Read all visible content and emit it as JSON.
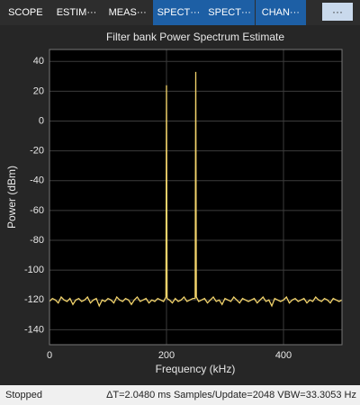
{
  "toolbar": {
    "tabs": [
      {
        "label": "SCOPE",
        "active": false
      },
      {
        "label": "ESTIM···",
        "active": false
      },
      {
        "label": "MEAS···",
        "active": false
      },
      {
        "label": "SPECT···",
        "active": true
      },
      {
        "label": "SPECT···",
        "active": true
      },
      {
        "label": "CHAN···",
        "active": true
      }
    ],
    "more": "···"
  },
  "chart_data": {
    "type": "line",
    "title": "Filter bank Power Spectrum Estimate",
    "x_label": "Frequency (kHz)",
    "y_label": "Power (dBm)",
    "x": [
      0,
      5,
      10,
      15,
      20,
      25,
      30,
      35,
      40,
      45,
      50,
      55,
      60,
      65,
      70,
      75,
      80,
      85,
      90,
      95,
      100,
      105,
      110,
      115,
      120,
      125,
      130,
      135,
      140,
      145,
      150,
      155,
      160,
      165,
      170,
      175,
      180,
      185,
      190,
      195,
      199,
      200,
      201,
      205,
      210,
      215,
      220,
      225,
      230,
      235,
      240,
      245,
      249,
      250,
      251,
      255,
      260,
      265,
      270,
      275,
      280,
      285,
      290,
      295,
      300,
      305,
      310,
      315,
      320,
      325,
      330,
      335,
      340,
      345,
      350,
      355,
      360,
      365,
      370,
      375,
      380,
      385,
      390,
      395,
      400,
      405,
      410,
      415,
      420,
      425,
      430,
      435,
      440,
      445,
      450,
      455,
      460,
      465,
      470,
      475,
      480,
      485,
      490,
      495,
      500
    ],
    "series": [
      {
        "color": "#f2d36b",
        "values": [
          -121,
          -119,
          -120,
          -122,
          -118,
          -120,
          -121,
          -119,
          -123,
          -120,
          -119,
          -121,
          -120,
          -118,
          -122,
          -120,
          -119,
          -124,
          -120,
          -121,
          -119,
          -120,
          -122,
          -118,
          -120,
          -121,
          -119,
          -120,
          -123,
          -120,
          -118,
          -121,
          -120,
          -119,
          -122,
          -120,
          -121,
          -119,
          -120,
          -121,
          -118,
          24,
          -119,
          -120,
          -122,
          -119,
          -121,
          -120,
          -118,
          -121,
          -120,
          -119,
          -119,
          33,
          -118,
          -121,
          -120,
          -119,
          -122,
          -120,
          -118,
          -121,
          -120,
          -123,
          -119,
          -120,
          -121,
          -118,
          -120,
          -122,
          -119,
          -120,
          -121,
          -120,
          -119,
          -122,
          -120,
          -118,
          -121,
          -120,
          -124,
          -119,
          -120,
          -121,
          -120,
          -118,
          -122,
          -120,
          -119,
          -121,
          -120,
          -119,
          -122,
          -120,
          -121,
          -118,
          -120,
          -121,
          -119,
          -120,
          -122,
          -119,
          -120,
          -121,
          -120
        ]
      }
    ],
    "xlim": [
      0,
      500
    ],
    "xticks": [
      0,
      200,
      400
    ],
    "ylim": [
      -150,
      48
    ],
    "yticks": [
      40,
      20,
      0,
      -20,
      -40,
      -60,
      -80,
      -100,
      -120,
      -140
    ],
    "grid": true
  },
  "status": {
    "state": "Stopped",
    "info": "ΔT=2.0480 ms  Samples/Update=2048  VBW=33.3053 Hz"
  }
}
